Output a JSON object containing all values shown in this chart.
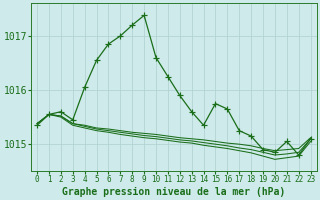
{
  "title": "Graphe pression niveau de la mer (hPa)",
  "background_color": "#ceeaea",
  "grid_color": "#aed0d0",
  "line_color": "#1a6e1a",
  "marker_color": "#1a6e1a",
  "ylim": [
    1014.5,
    1017.6
  ],
  "yticks": [
    1015,
    1016,
    1017
  ],
  "xlim": [
    -0.5,
    23.5
  ],
  "xticks": [
    0,
    1,
    2,
    3,
    4,
    5,
    6,
    7,
    8,
    9,
    10,
    11,
    12,
    13,
    14,
    15,
    16,
    17,
    18,
    19,
    20,
    21,
    22,
    23
  ],
  "series": [
    [
      1015.35,
      1015.55,
      1015.6,
      1015.45,
      1016.05,
      1016.55,
      1016.85,
      1017.0,
      1017.2,
      1017.38,
      1016.6,
      1016.25,
      1015.9,
      1015.6,
      1015.35,
      1015.75,
      1015.65,
      1015.25,
      1015.15,
      1014.9,
      1014.85,
      1015.05,
      1014.8,
      1015.1
    ],
    [
      1015.38,
      1015.55,
      1015.52,
      1015.38,
      1015.35,
      1015.3,
      1015.28,
      1015.25,
      1015.22,
      1015.2,
      1015.18,
      1015.15,
      1015.12,
      1015.1,
      1015.08,
      1015.05,
      1015.02,
      1015.0,
      1014.97,
      1014.92,
      1014.88,
      1014.9,
      1014.92,
      1015.12
    ],
    [
      1015.38,
      1015.55,
      1015.5,
      1015.35,
      1015.3,
      1015.25,
      1015.22,
      1015.18,
      1015.15,
      1015.12,
      1015.1,
      1015.07,
      1015.04,
      1015.02,
      1014.98,
      1014.95,
      1014.92,
      1014.88,
      1014.84,
      1014.78,
      1014.72,
      1014.75,
      1014.78,
      1015.05
    ],
    [
      1015.38,
      1015.55,
      1015.52,
      1015.38,
      1015.33,
      1015.28,
      1015.25,
      1015.22,
      1015.19,
      1015.16,
      1015.14,
      1015.11,
      1015.08,
      1015.06,
      1015.03,
      1015.0,
      1014.97,
      1014.93,
      1014.9,
      1014.85,
      1014.8,
      1014.82,
      1014.85,
      1015.1
    ]
  ],
  "font_color": "#1a6e1a",
  "xlabel_fontsize": 7,
  "ytick_fontsize": 7,
  "xtick_fontsize": 5.5
}
